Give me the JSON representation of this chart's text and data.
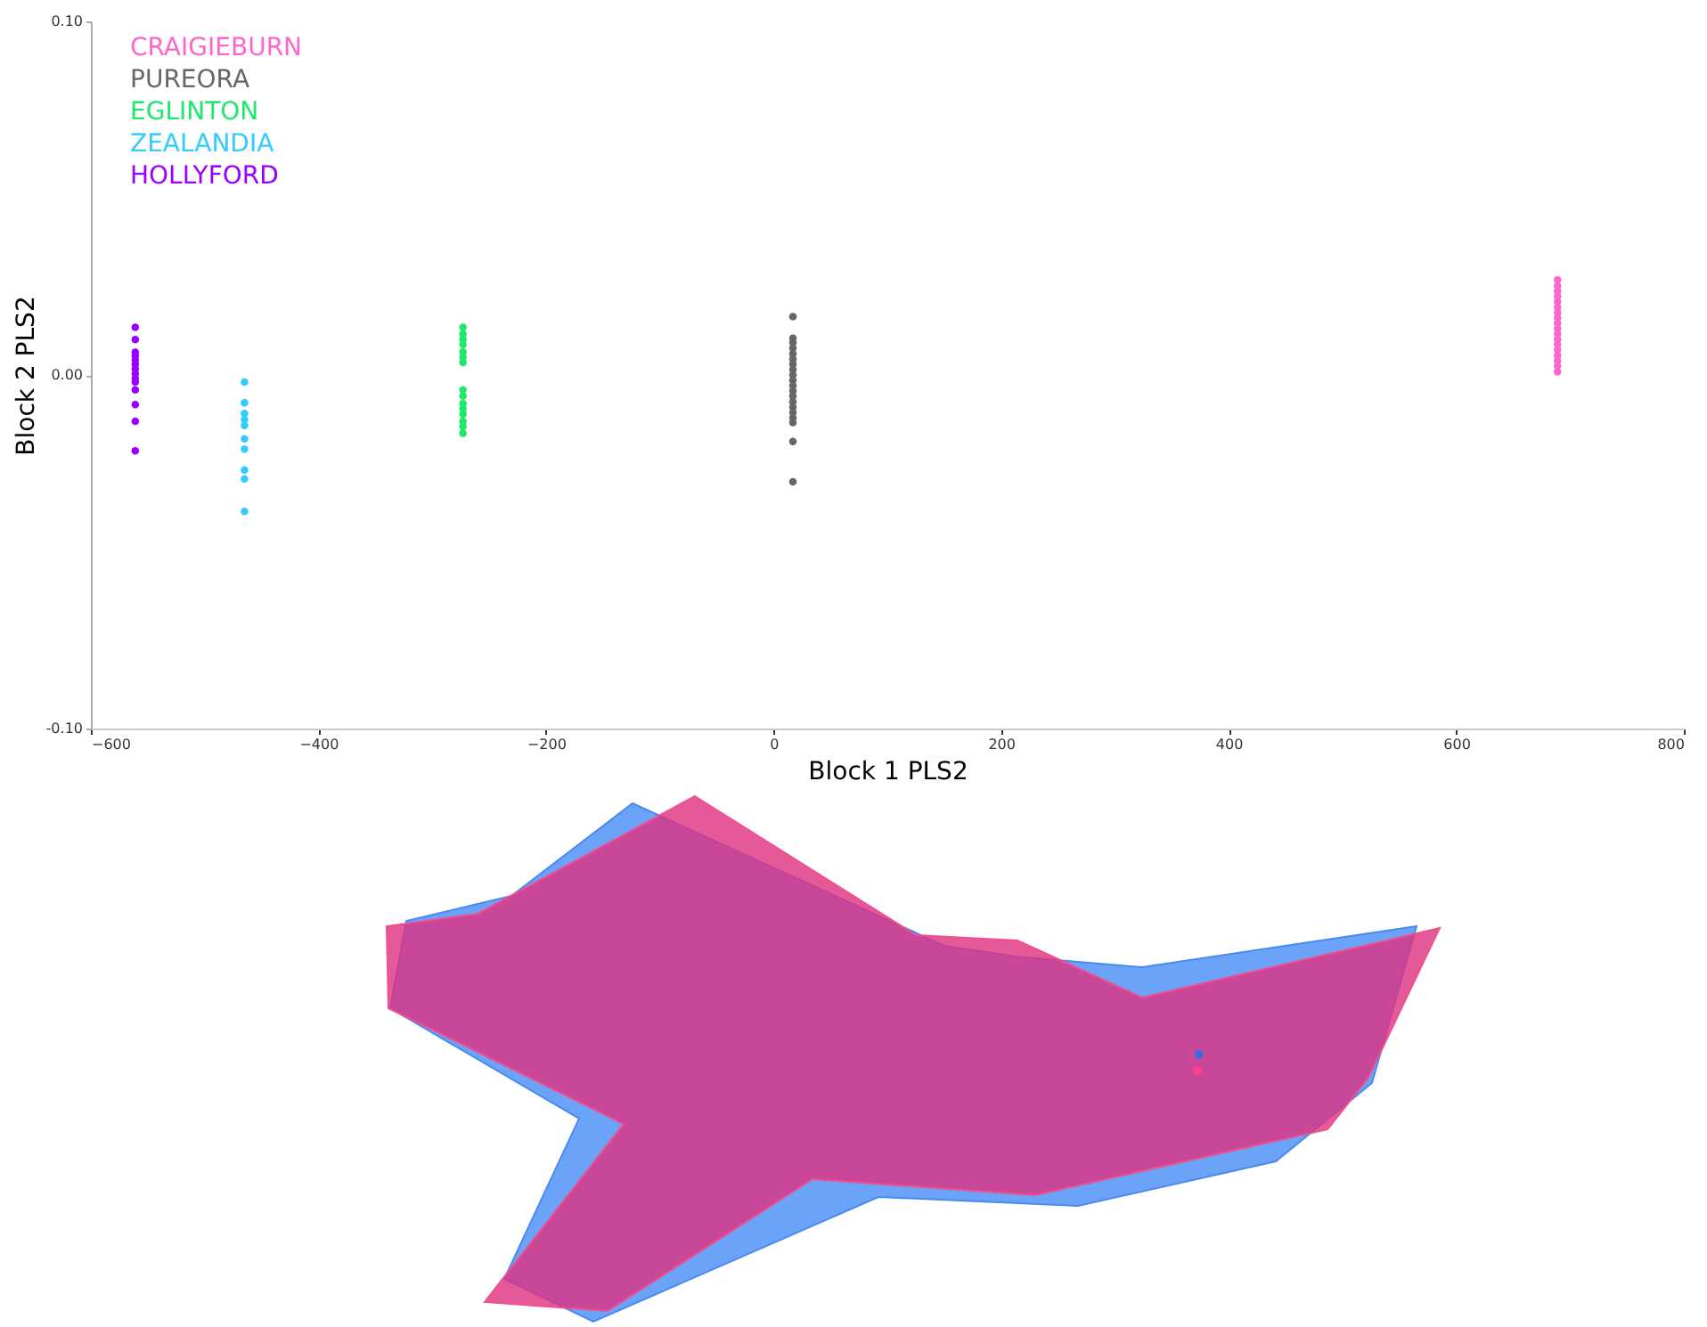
{
  "chart_data": {
    "type": "scatter",
    "xlabel": "Block 1 PLS2",
    "ylabel": "Block 2 PLS2",
    "xlim": [
      -600,
      800
    ],
    "ylim": [
      -0.1,
      0.1
    ],
    "xticks": [
      -600,
      -400,
      -200,
      0,
      200,
      400,
      600,
      800
    ],
    "yticks": [
      {
        "value": -0.1,
        "label": "-0.10"
      },
      {
        "value": 0,
        "label": "0.00"
      },
      {
        "value": 0.1,
        "label": "0.10"
      }
    ],
    "legend": "top left",
    "marker": "circle",
    "series": [
      {
        "name": "CRAIGIEBURN",
        "color": "#ff66cc",
        "x": [
          689,
          689,
          689,
          689,
          689,
          689,
          689,
          689,
          689,
          689,
          689,
          689,
          689,
          689,
          689,
          689,
          689,
          689
        ],
        "values": [
          0.0269,
          0.0252,
          0.0237,
          0.0222,
          0.0207,
          0.0191,
          0.0176,
          0.0161,
          0.0146,
          0.0131,
          0.0116,
          0.0101,
          0.0086,
          0.0071,
          0.0055,
          0.004,
          0.0025,
          0.0009
        ]
      },
      {
        "name": "PUREORA",
        "color": "#666666",
        "x": [
          17,
          17,
          17,
          17,
          17,
          17,
          17,
          17,
          17,
          17,
          17,
          17,
          17,
          17,
          17,
          17,
          17,
          17,
          17,
          17
        ],
        "values": [
          0.0165,
          0.0104,
          0.0091,
          0.0076,
          0.006,
          0.0045,
          0.003,
          0.0015,
          0,
          -0.0015,
          -0.003,
          -0.0045,
          -0.006,
          -0.0076,
          -0.0091,
          -0.0106,
          -0.0121,
          -0.0135,
          -0.0188,
          -0.0302
        ]
      },
      {
        "name": "EGLINTON",
        "color": "#1ee86a",
        "x": [
          -273,
          -273,
          -273,
          -273,
          -273,
          -273,
          -273,
          -273,
          -273,
          -273,
          -273,
          -273,
          -273,
          -273,
          -273
        ],
        "values": [
          0.0135,
          0.0116,
          0.0101,
          0.0086,
          0.0065,
          0.005,
          0.0035,
          -0.0042,
          -0.006,
          -0.0081,
          -0.0096,
          -0.0111,
          -0.0131,
          -0.0146,
          -0.0165
        ]
      },
      {
        "name": "ZEALANDIA",
        "color": "#33ccff",
        "x": [
          -465,
          -465,
          -465,
          -465,
          -465,
          -465,
          -465,
          -465,
          -465,
          -465
        ],
        "values": [
          -0.002,
          -0.0079,
          -0.0109,
          -0.0126,
          -0.0143,
          -0.0181,
          -0.021,
          -0.0269,
          -0.0294,
          -0.0386
        ]
      },
      {
        "name": "HOLLYFORD",
        "color": "#9900ff",
        "x": [
          -561,
          -561,
          -561,
          -561,
          -561,
          -561,
          -561,
          -561,
          -561,
          -561,
          -561,
          -561,
          -561,
          -561
        ],
        "values": [
          0.0135,
          0.01,
          0.0064,
          0.0054,
          0.0042,
          0.003,
          0.0017,
          0.0004,
          -0.001,
          -0.002,
          -0.0042,
          -0.0084,
          -0.0131,
          -0.0215
        ]
      }
    ]
  }
}
